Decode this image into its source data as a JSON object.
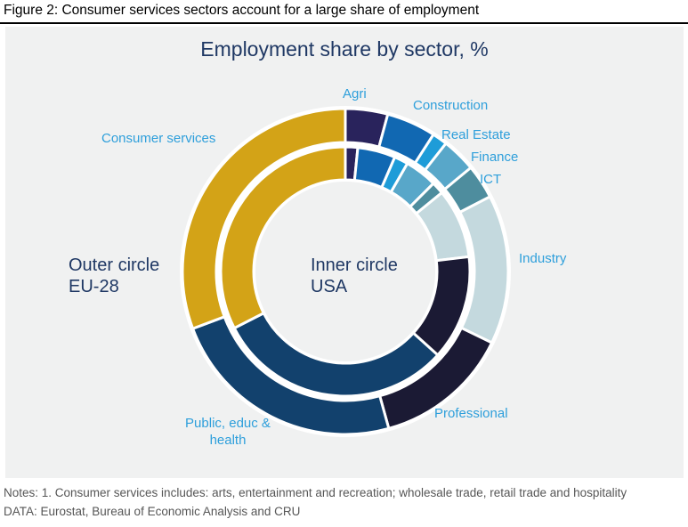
{
  "figure": {
    "title": "Figure 2: Consumer services sectors account for a large share of employment"
  },
  "chart_data": {
    "type": "donut",
    "title": "Employment share by sector, %",
    "units": "%",
    "direction": "clockwise",
    "start_angle_deg": 0,
    "background": "#F0F1F1",
    "title_color": "#1F3864",
    "label_color": "#2E9FDB",
    "categories": [
      "Agri",
      "Construction",
      "Real Estate",
      "Finance",
      "ICT",
      "Industry",
      "Professional",
      "Public, educ & health",
      "Consumer services"
    ],
    "colors": [
      "#29235C",
      "#1168B2",
      "#1E9CD8",
      "#58A7C9",
      "#4E8D9E",
      "#C4D9DE",
      "#1B1A34",
      "#12416D",
      "#D3A317"
    ],
    "series": [
      {
        "name": "EU-28",
        "ring": "outer",
        "caption_line1": "Outer circle",
        "caption_line2": "EU-28",
        "values": [
          4.2,
          4.9,
          1.5,
          3.4,
          3.4,
          14.8,
          13.5,
          23.6,
          30.7
        ]
      },
      {
        "name": "USA",
        "ring": "inner",
        "caption_line1": "Inner circle",
        "caption_line2": "USA",
        "values": [
          1.6,
          4.9,
          1.8,
          4.2,
          1.6,
          9.0,
          13.6,
          30.8,
          32.5
        ]
      }
    ]
  },
  "notes": {
    "line1": "Notes: 1. Consumer services includes: arts, entertainment and recreation; wholesale trade, retail trade and hospitality",
    "line2": "DATA: Eurostat, Bureau of Economic Analysis and CRU"
  }
}
